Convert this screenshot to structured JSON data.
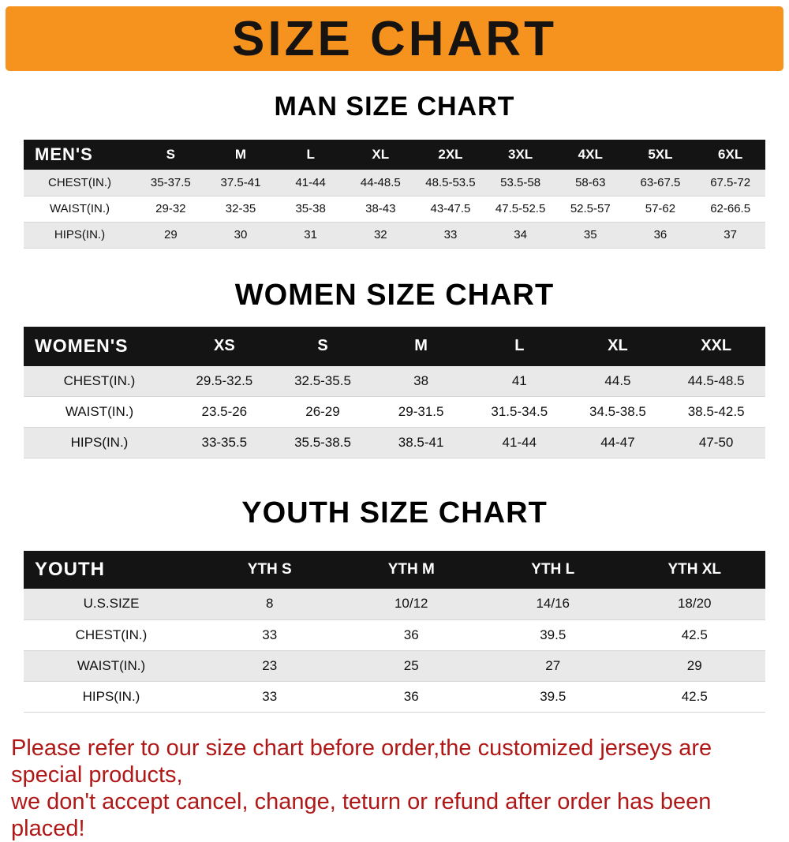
{
  "banner": {
    "title": "SIZE CHART"
  },
  "colors": {
    "banner_bg": "#F6921E",
    "table_header_bg": "#141414",
    "table_header_text": "#FFFFFF",
    "row_alt_bg": "#E9E9E9",
    "footer_text": "#B01818"
  },
  "men": {
    "heading": "MAN SIZE CHART",
    "title": "MEN'S",
    "columns": [
      "S",
      "M",
      "L",
      "XL",
      "2XL",
      "3XL",
      "4XL",
      "5XL",
      "6XL"
    ],
    "rows": [
      {
        "label": "CHEST(IN.)",
        "values": [
          "35-37.5",
          "37.5-41",
          "41-44",
          "44-48.5",
          "48.5-53.5",
          "53.5-58",
          "58-63",
          "63-67.5",
          "67.5-72"
        ]
      },
      {
        "label": "WAIST(IN.)",
        "values": [
          "29-32",
          "32-35",
          "35-38",
          "38-43",
          "43-47.5",
          "47.5-52.5",
          "52.5-57",
          "57-62",
          "62-66.5"
        ]
      },
      {
        "label": "HIPS(IN.)",
        "values": [
          "29",
          "30",
          "31",
          "32",
          "33",
          "34",
          "35",
          "36",
          "37"
        ]
      }
    ]
  },
  "women": {
    "heading": "WOMEN SIZE CHART",
    "title": "WOMEN'S",
    "columns": [
      "XS",
      "S",
      "M",
      "L",
      "XL",
      "XXL"
    ],
    "rows": [
      {
        "label": "CHEST(IN.)",
        "values": [
          "29.5-32.5",
          "32.5-35.5",
          "38",
          "41",
          "44.5",
          "44.5-48.5"
        ]
      },
      {
        "label": "WAIST(IN.)",
        "values": [
          "23.5-26",
          "26-29",
          "29-31.5",
          "31.5-34.5",
          "34.5-38.5",
          "38.5-42.5"
        ]
      },
      {
        "label": "HIPS(IN.)",
        "values": [
          "33-35.5",
          "35.5-38.5",
          "38.5-41",
          "41-44",
          "44-47",
          "47-50"
        ]
      }
    ]
  },
  "youth": {
    "heading": "YOUTH SIZE CHART",
    "title": "YOUTH",
    "columns": [
      "YTH S",
      "YTH M",
      "YTH L",
      "YTH XL"
    ],
    "rows": [
      {
        "label": "U.S.SIZE",
        "values": [
          "8",
          "10/12",
          "14/16",
          "18/20"
        ]
      },
      {
        "label": "CHEST(IN.)",
        "values": [
          "33",
          "36",
          "39.5",
          "42.5"
        ]
      },
      {
        "label": "WAIST(IN.)",
        "values": [
          "23",
          "25",
          "27",
          "29"
        ]
      },
      {
        "label": "HIPS(IN.)",
        "values": [
          "33",
          "36",
          "39.5",
          "42.5"
        ]
      }
    ]
  },
  "footer": {
    "line1": "Please refer to our size chart before order,the customized jerseys are special products,",
    "line2": "we don't accept cancel, change, teturn or refund after order has been placed!"
  }
}
